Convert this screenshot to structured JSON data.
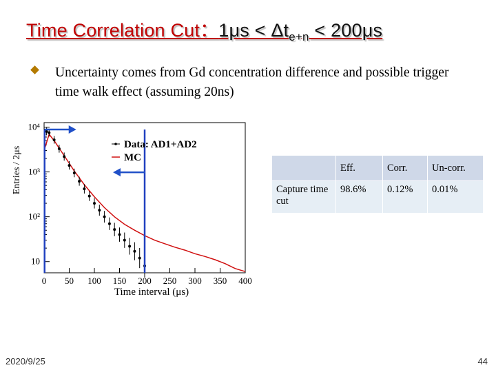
{
  "slide": {
    "title_prefix": "Time Correlation Cut：",
    "title_range_start": "1μs < Δt",
    "title_subscript": "e+n",
    "title_range_end": " < 200μs",
    "bullet_text": "Uncertainty comes from Gd concentration difference and possible trigger time walk effect (assuming 20ns)",
    "footer_date": "2020/9/25",
    "page_number": "44"
  },
  "table": {
    "headers": [
      "",
      "Eff.",
      "Corr.",
      "Un-corr."
    ],
    "rows": [
      {
        "label": "Capture time cut",
        "values": [
          "98.6%",
          "0.12%",
          "0.01%"
        ]
      }
    ]
  },
  "chart_data": {
    "type": "scatter",
    "xlabel": "Time interval (μs)",
    "ylabel": "Entries / 2μs",
    "xticks": [
      "0",
      "50",
      "100",
      "150",
      "200",
      "250",
      "300",
      "350",
      "400"
    ],
    "yticks": [
      "10",
      "10²",
      "10³",
      "10⁴"
    ],
    "xlim": [
      0,
      400
    ],
    "ylim_log10": [
      0.75,
      4.1
    ],
    "log_y": true,
    "cut_lines_x": [
      1,
      200
    ],
    "legend": [
      "Data: AD1+AD2",
      "MC"
    ],
    "legend_placement": "top-center",
    "series": [
      {
        "name": "Data: AD1+AD2",
        "x": [
          5,
          10,
          20,
          30,
          40,
          50,
          60,
          70,
          80,
          90,
          100,
          110,
          120,
          130,
          140,
          150,
          160,
          170,
          180,
          190,
          200
        ],
        "y": [
          8000,
          7500,
          5200,
          3300,
          2200,
          1400,
          950,
          620,
          420,
          290,
          200,
          140,
          100,
          70,
          52,
          40,
          30,
          22,
          17,
          12,
          8
        ]
      },
      {
        "name": "MC",
        "x": [
          0,
          10,
          20,
          40,
          60,
          80,
          100,
          120,
          140,
          160,
          180,
          200,
          220,
          240,
          260,
          280,
          300,
          320,
          340,
          360,
          380,
          400
        ],
        "y": [
          3000,
          6900,
          5000,
          2300,
          1050,
          520,
          280,
          160,
          100,
          68,
          50,
          38,
          30,
          25,
          21,
          18,
          15,
          13,
          11,
          9,
          7,
          6
        ]
      }
    ],
    "colors": {
      "data": "#000000",
      "mc": "#d01010",
      "cut": "#2040c0",
      "arrow": "#2050c8"
    }
  }
}
